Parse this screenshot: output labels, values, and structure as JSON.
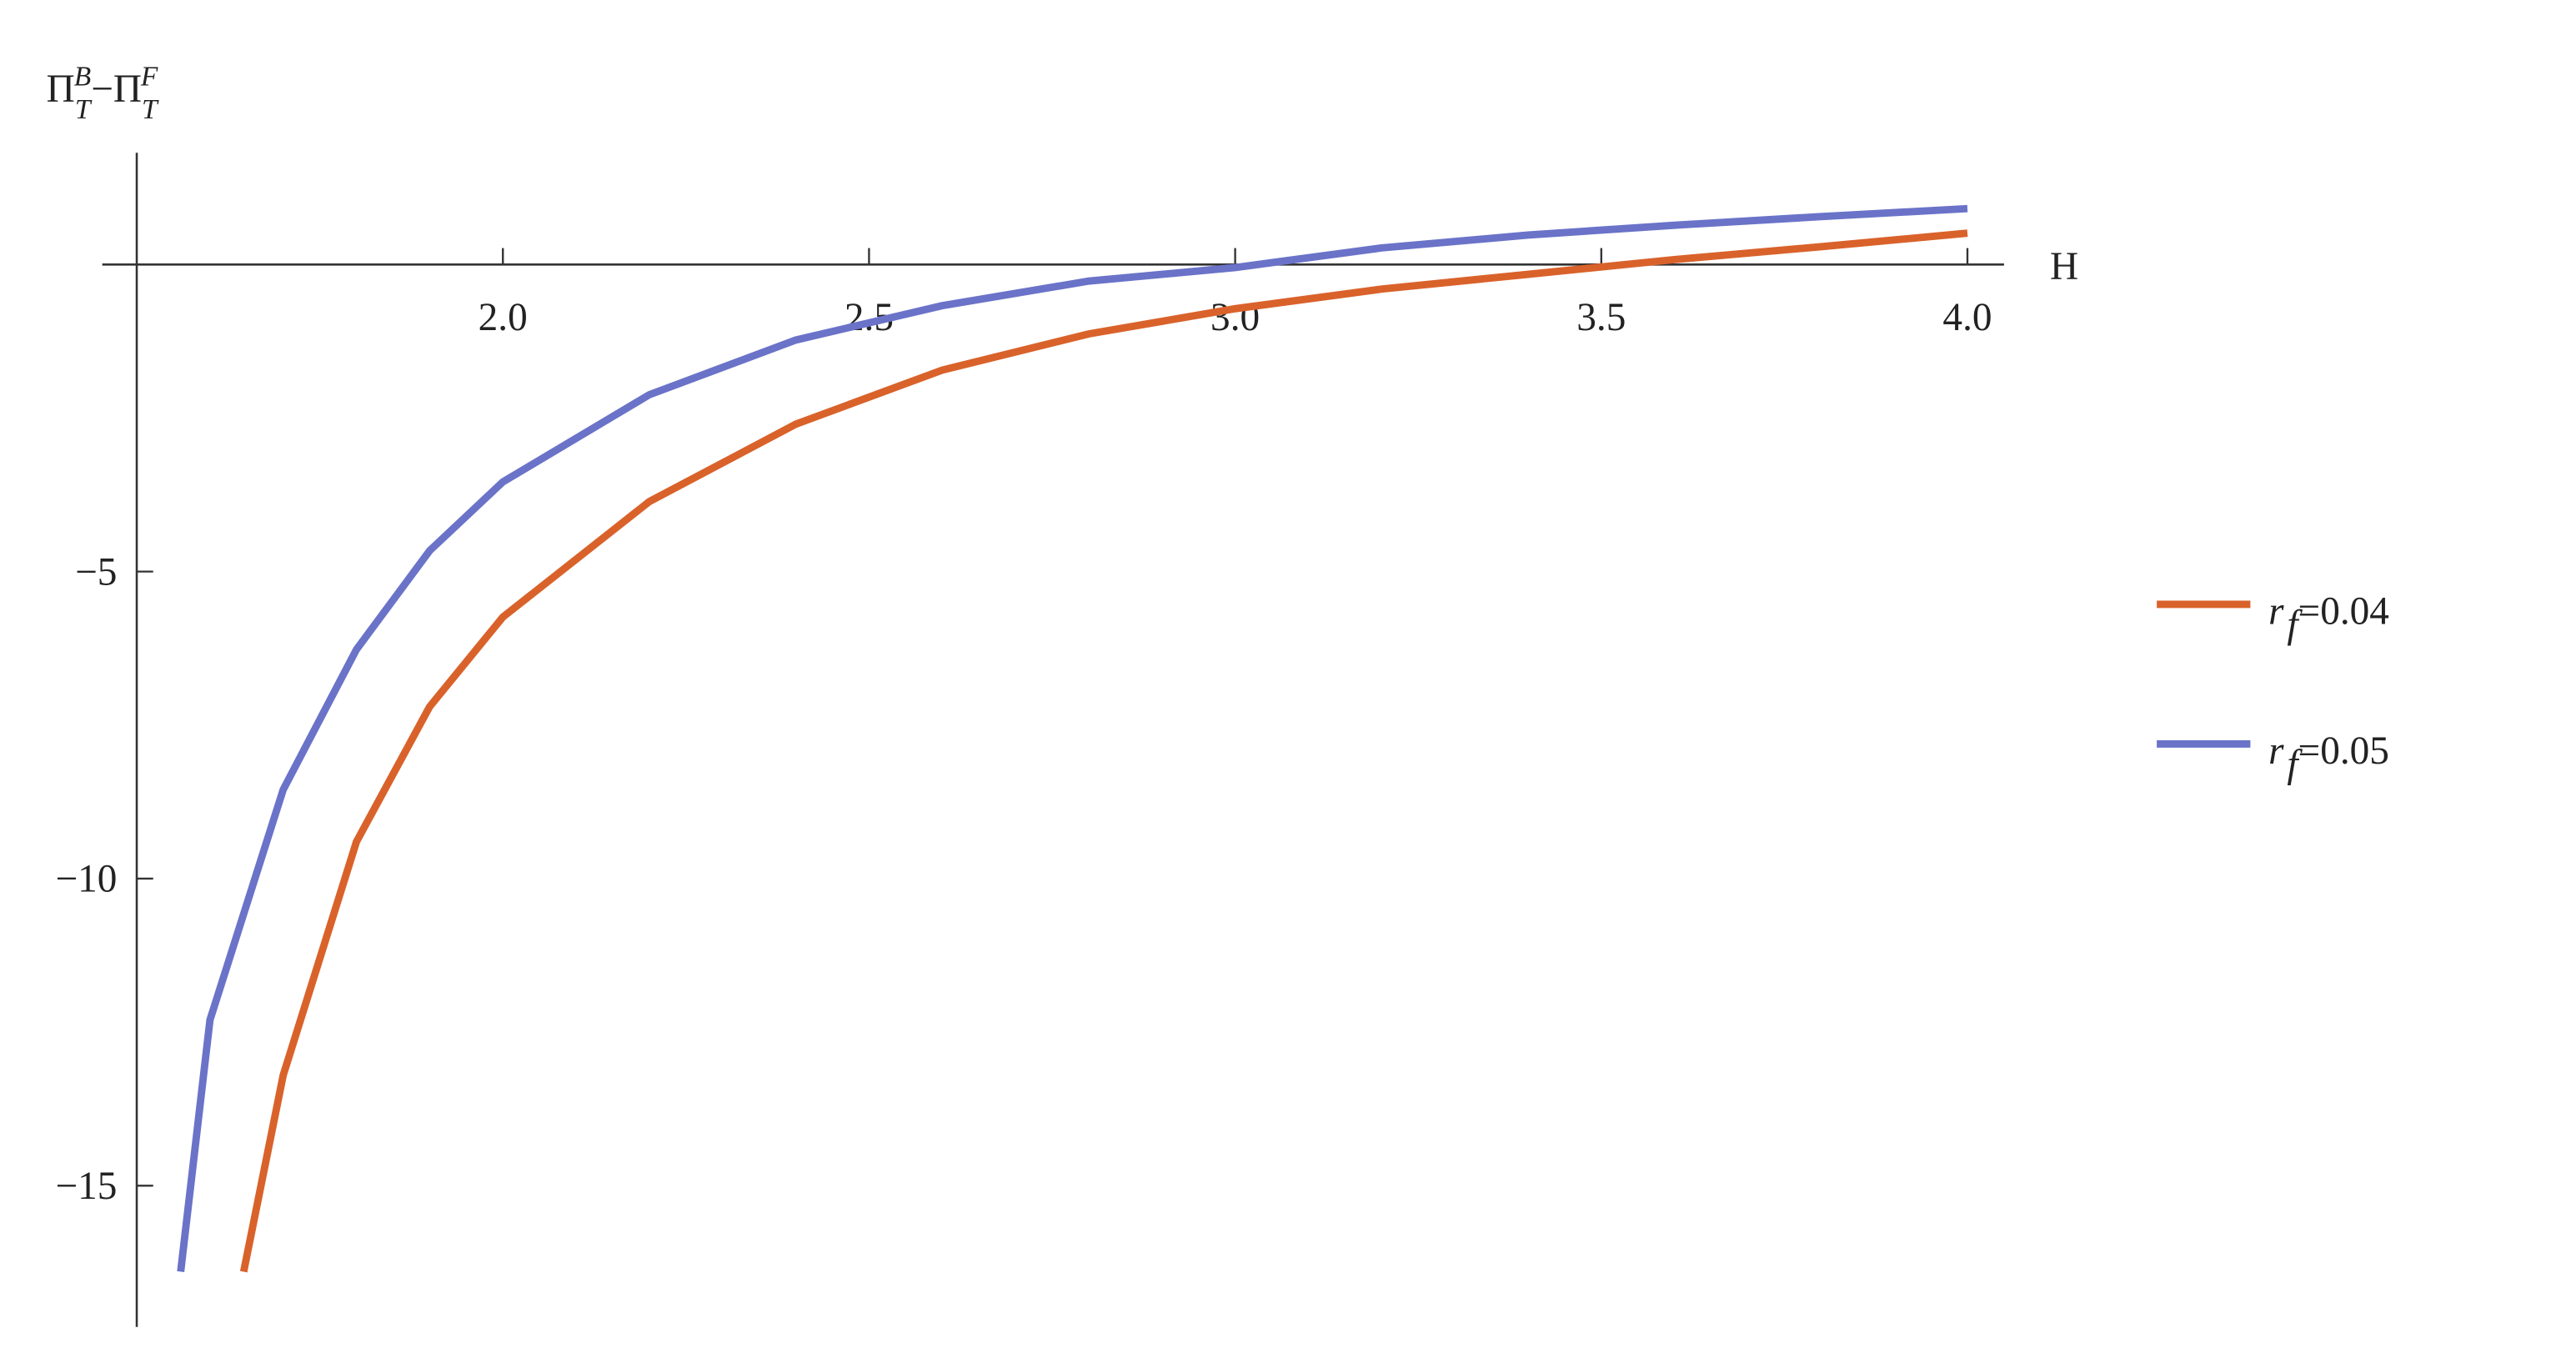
{
  "chart_data": {
    "type": "line",
    "ylabel": [
      "Π",
      "T",
      "B",
      "−Π",
      "T",
      "F"
    ],
    "xlabel": "H",
    "xlim": [
      1.5,
      4.05
    ],
    "ylim": [
      -17.3,
      1.82
    ],
    "xticks": [
      {
        "value": 2.0,
        "label": "2.0"
      },
      {
        "value": 2.5,
        "label": "2.5"
      },
      {
        "value": 3.0,
        "label": "3.0"
      },
      {
        "value": 3.5,
        "label": "3.5"
      },
      {
        "value": 4.0,
        "label": "4.0"
      }
    ],
    "yticks": [
      {
        "value": -5,
        "label": "−5"
      },
      {
        "value": -10,
        "label": "−10"
      },
      {
        "value": -15,
        "label": "−15"
      }
    ],
    "legend": "right",
    "series": [
      {
        "name": "rf=0.04",
        "color": "#d9622b",
        "x": [
          1.646,
          1.7,
          1.8,
          1.9,
          2.0,
          2.2,
          2.4,
          2.6,
          2.8,
          3.0,
          3.2,
          3.4,
          3.6,
          3.8,
          4.0
        ],
        "values": [
          -16.4,
          -13.2,
          -9.4,
          -7.2,
          -5.74,
          -3.86,
          -2.6,
          -1.72,
          -1.13,
          -0.72,
          -0.4,
          -0.16,
          0.08,
          0.29,
          0.51
        ]
      },
      {
        "name": "rf=0.05",
        "color": "#6a73c8",
        "x": [
          1.56,
          1.6,
          1.7,
          1.8,
          1.9,
          2.0,
          2.2,
          2.4,
          2.6,
          2.8,
          3.0,
          3.2,
          3.4,
          3.6,
          3.8,
          4.0
        ],
        "values": [
          -16.4,
          -12.3,
          -8.55,
          -6.27,
          -4.66,
          -3.54,
          -2.12,
          -1.23,
          -0.67,
          -0.27,
          -0.05,
          0.27,
          0.48,
          0.64,
          0.78,
          0.91
        ]
      }
    ]
  }
}
